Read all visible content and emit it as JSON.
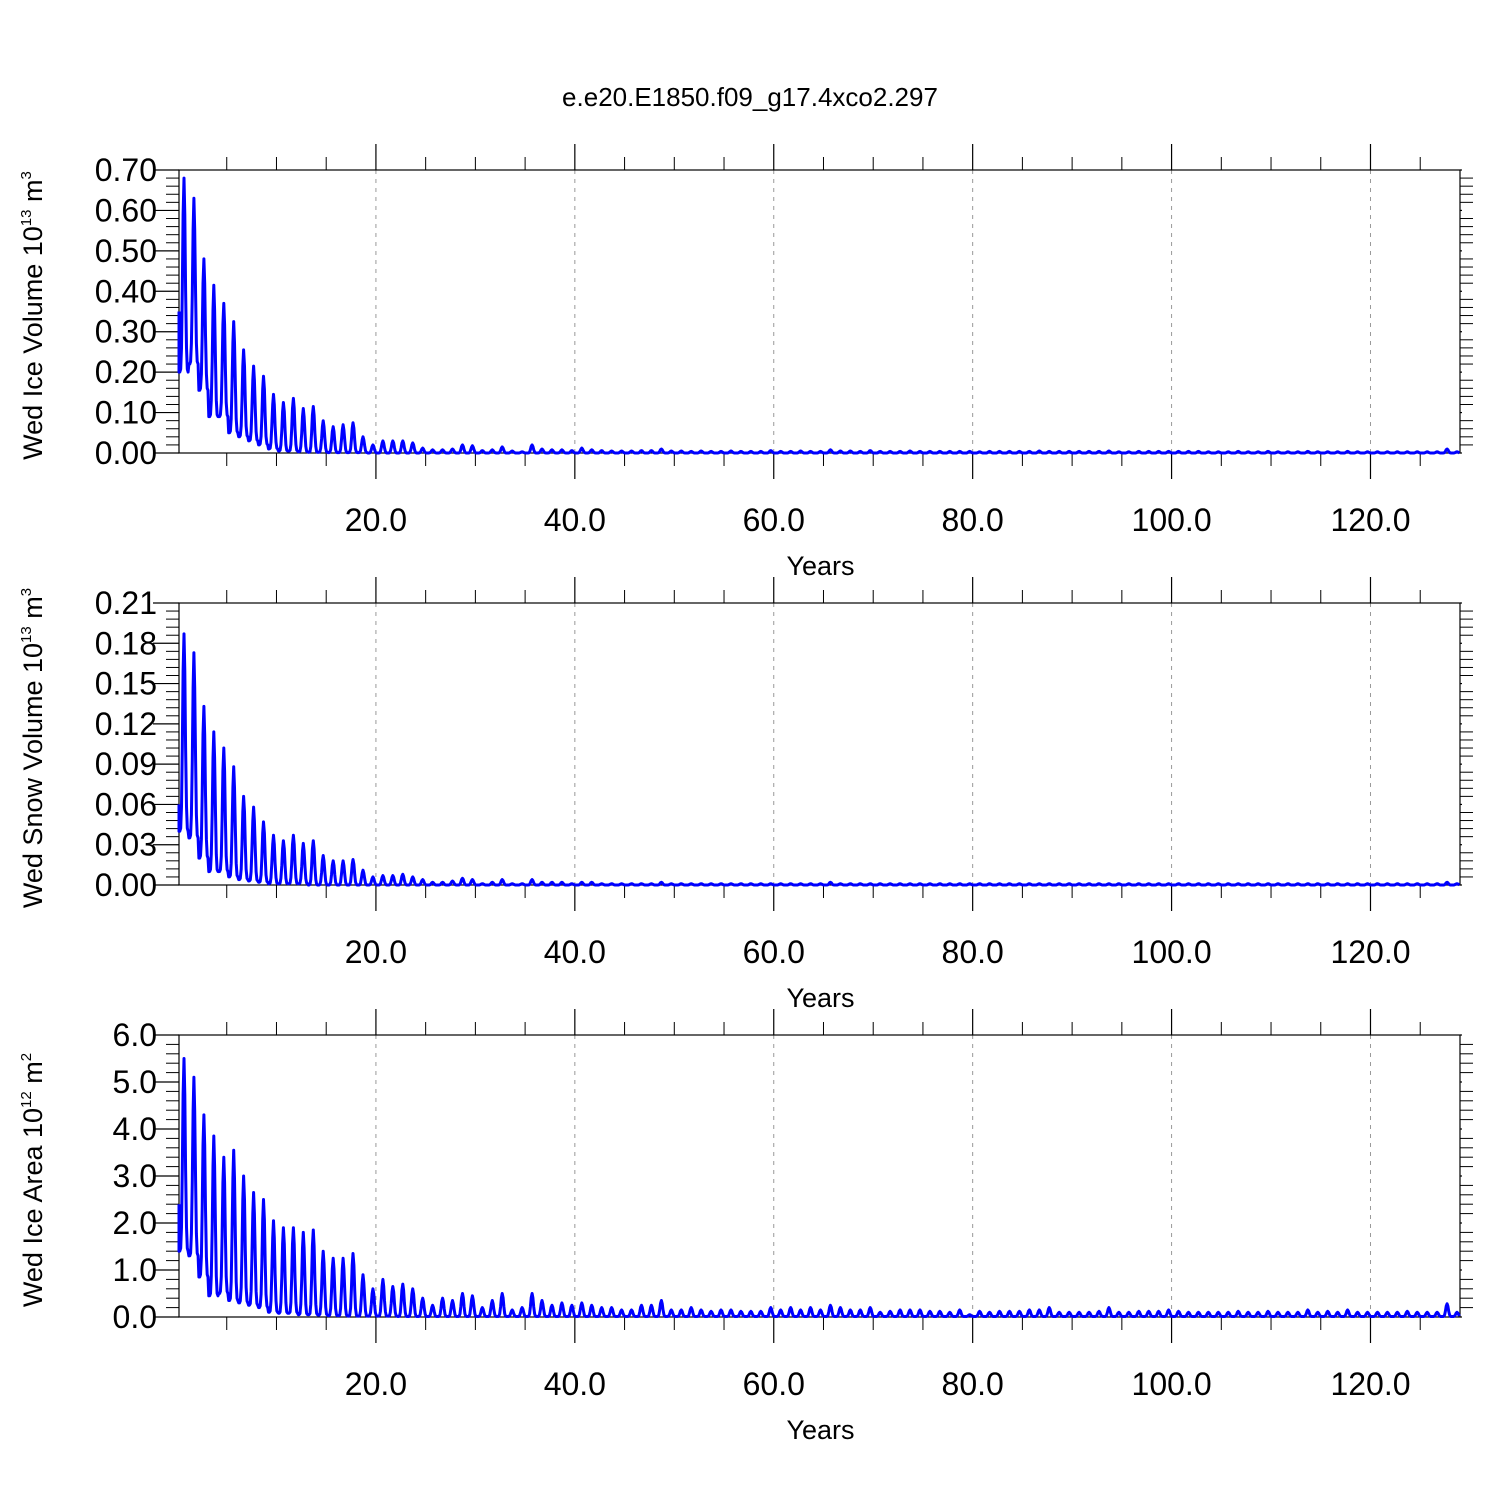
{
  "title": "e.e20.E1850.f09_g17.4xco2.297",
  "colors": {
    "series": "#0000ff",
    "axis": "#000000",
    "grid": "#999999"
  },
  "chart_data": [
    {
      "type": "line",
      "ylabel": {
        "prefix": "Wed Ice Volume 10",
        "exp": "13",
        "suffix": " m",
        "unit_exp": "3"
      },
      "xlabel": "Years",
      "xlim": [
        0.2,
        129
      ],
      "ylim": [
        0,
        0.7
      ],
      "yticks": [
        0,
        0.1,
        0.2,
        0.3,
        0.4,
        0.5,
        0.6,
        0.7
      ],
      "ytick_labels": [
        "0.00",
        "0.10",
        "0.20",
        "0.30",
        "0.40",
        "0.50",
        "0.60",
        "0.70"
      ],
      "xticks": [
        20,
        40,
        60,
        80,
        100,
        120
      ],
      "xtick_labels": [
        "20.0",
        "40.0",
        "60.0",
        "80.0",
        "100.0",
        "120.0"
      ],
      "grid": "vertical dashed at major x ticks",
      "series": [
        {
          "start": 0.35,
          "annual_max": [
            0.68,
            0.63,
            0.48,
            0.415,
            0.37,
            0.325,
            0.255,
            0.215,
            0.19,
            0.145,
            0.125,
            0.135,
            0.11,
            0.115,
            0.08,
            0.065,
            0.07,
            0.075,
            0.04,
            0.02,
            0.03,
            0.03,
            0.03,
            0.025,
            0.012,
            0.008,
            0.008,
            0.01,
            0.02,
            0.018,
            0.006,
            0.008,
            0.015,
            0.005,
            0.003,
            0.02,
            0.01,
            0.008,
            0.008,
            0.006,
            0.012,
            0.008,
            0.006,
            0.005,
            0.005,
            0.005,
            0.006,
            0.006,
            0.01,
            0.005,
            0.005,
            0.004,
            0.005,
            0.004,
            0.004,
            0.005,
            0.004,
            0.004,
            0.004,
            0.006,
            0.004,
            0.004,
            0.005,
            0.004,
            0.004,
            0.008,
            0.005,
            0.005,
            0.004,
            0.006,
            0.004,
            0.004,
            0.004,
            0.005,
            0.004,
            0.004,
            0.004,
            0.004,
            0.004,
            0.004,
            0.003,
            0.004,
            0.004,
            0.004,
            0.004,
            0.004,
            0.005,
            0.004,
            0.004,
            0.004,
            0.004,
            0.004,
            0.004,
            0.005,
            0.003,
            0.003,
            0.004,
            0.004,
            0.004,
            0.004,
            0.004,
            0.004,
            0.004,
            0.003,
            0.003,
            0.003,
            0.004,
            0.003,
            0.003,
            0.004,
            0.003,
            0.003,
            0.003,
            0.004,
            0.003,
            0.003,
            0.003,
            0.004,
            0.003,
            0.003,
            0.003,
            0.003,
            0.003,
            0.003,
            0.003,
            0.003,
            0.003,
            0.01,
            0.003
          ],
          "annual_min": [
            0.2,
            0.22,
            0.155,
            0.09,
            0.09,
            0.05,
            0.04,
            0.03,
            0.02,
            0.01,
            0.005,
            0.005,
            0.003,
            0.002,
            0.002,
            0.001,
            0.001,
            0.001,
            0.001,
            0,
            0,
            0,
            0,
            0,
            0,
            0,
            0,
            0,
            0,
            0,
            0,
            0,
            0,
            0,
            0,
            0,
            0,
            0,
            0,
            0,
            0,
            0,
            0,
            0,
            0,
            0,
            0,
            0,
            0,
            0,
            0,
            0,
            0,
            0,
            0,
            0,
            0,
            0,
            0,
            0,
            0,
            0,
            0,
            0,
            0,
            0,
            0,
            0,
            0,
            0,
            0,
            0,
            0,
            0,
            0,
            0,
            0,
            0,
            0,
            0,
            0,
            0,
            0,
            0,
            0,
            0,
            0,
            0,
            0,
            0,
            0,
            0,
            0,
            0,
            0,
            0,
            0,
            0,
            0,
            0,
            0,
            0,
            0,
            0,
            0,
            0,
            0,
            0,
            0,
            0,
            0,
            0,
            0,
            0,
            0,
            0,
            0,
            0,
            0,
            0,
            0,
            0,
            0,
            0,
            0,
            0,
            0,
            0,
            0
          ]
        }
      ]
    },
    {
      "type": "line",
      "ylabel": {
        "prefix": "Wed Snow Volume 10",
        "exp": "13",
        "suffix": " m",
        "unit_exp": "3"
      },
      "xlabel": "Years",
      "xlim": [
        0.2,
        129
      ],
      "ylim": [
        0,
        0.21
      ],
      "yticks": [
        0,
        0.03,
        0.06,
        0.09,
        0.12,
        0.15,
        0.18,
        0.21
      ],
      "ytick_labels": [
        "0.00",
        "0.03",
        "0.06",
        "0.09",
        "0.12",
        "0.15",
        "0.18",
        "0.21"
      ],
      "xticks": [
        20,
        40,
        60,
        80,
        100,
        120
      ],
      "xtick_labels": [
        "20.0",
        "40.0",
        "60.0",
        "80.0",
        "100.0",
        "120.0"
      ],
      "grid": "vertical dashed at major x ticks",
      "series": [
        {
          "start": 0.06,
          "annual_max": [
            0.187,
            0.173,
            0.133,
            0.114,
            0.102,
            0.088,
            0.066,
            0.058,
            0.047,
            0.037,
            0.033,
            0.037,
            0.031,
            0.033,
            0.022,
            0.018,
            0.018,
            0.019,
            0.011,
            0.006,
            0.007,
            0.007,
            0.008,
            0.006,
            0.004,
            0.002,
            0.002,
            0.003,
            0.005,
            0.004,
            0.001,
            0.002,
            0.004,
            0.001,
            0.001,
            0.004,
            0.002,
            0.002,
            0.002,
            0.001,
            0.002,
            0.002,
            0.001,
            0.001,
            0.001,
            0.001,
            0.001,
            0.001,
            0.002,
            0.001,
            0.001,
            0.001,
            0.001,
            0.001,
            0.001,
            0.001,
            0.001,
            0.001,
            0.001,
            0.001,
            0.001,
            0.001,
            0.001,
            0.001,
            0.001,
            0.002,
            0.001,
            0.001,
            0.001,
            0.001,
            0.001,
            0.001,
            0.001,
            0.001,
            0.001,
            0.001,
            0.001,
            0.001,
            0.001,
            0.001,
            0.001,
            0.001,
            0.001,
            0.001,
            0.001,
            0.001,
            0.001,
            0.001,
            0.001,
            0.001,
            0.001,
            0.001,
            0.001,
            0.001,
            0.001,
            0.001,
            0.001,
            0.001,
            0.001,
            0.001,
            0.001,
            0.001,
            0.001,
            0.001,
            0.001,
            0.001,
            0.001,
            0.001,
            0.001,
            0.001,
            0.001,
            0.001,
            0.001,
            0.001,
            0.001,
            0.001,
            0.001,
            0.001,
            0.001,
            0.001,
            0.001,
            0.001,
            0.001,
            0.001,
            0.001,
            0.001,
            0.001,
            0.002,
            0.001
          ],
          "annual_min": [
            0.04,
            0.035,
            0.02,
            0.01,
            0.01,
            0.006,
            0.004,
            0.003,
            0.002,
            0.001,
            0.001,
            0.001,
            0.001,
            0,
            0,
            0,
            0,
            0,
            0,
            0,
            0,
            0,
            0,
            0,
            0,
            0,
            0,
            0,
            0,
            0,
            0,
            0,
            0,
            0,
            0,
            0,
            0,
            0,
            0,
            0,
            0,
            0,
            0,
            0,
            0,
            0,
            0,
            0,
            0,
            0,
            0,
            0,
            0,
            0,
            0,
            0,
            0,
            0,
            0,
            0,
            0,
            0,
            0,
            0,
            0,
            0,
            0,
            0,
            0,
            0,
            0,
            0,
            0,
            0,
            0,
            0,
            0,
            0,
            0,
            0,
            0,
            0,
            0,
            0,
            0,
            0,
            0,
            0,
            0,
            0,
            0,
            0,
            0,
            0,
            0,
            0,
            0,
            0,
            0,
            0,
            0,
            0,
            0,
            0,
            0,
            0,
            0,
            0,
            0,
            0,
            0,
            0,
            0,
            0,
            0,
            0,
            0,
            0,
            0,
            0,
            0,
            0,
            0,
            0,
            0,
            0,
            0,
            0,
            0
          ]
        }
      ]
    },
    {
      "type": "line",
      "ylabel": {
        "prefix": "Wed Ice Area 10",
        "exp": "12",
        "suffix": " m",
        "unit_exp": "2"
      },
      "xlabel": "Years",
      "xlim": [
        0.2,
        129
      ],
      "ylim": [
        0,
        6.0
      ],
      "yticks": [
        0,
        1.0,
        2.0,
        3.0,
        4.0,
        5.0,
        6.0
      ],
      "ytick_labels": [
        "0.0",
        "1.0",
        "2.0",
        "3.0",
        "4.0",
        "5.0",
        "6.0"
      ],
      "xticks": [
        20,
        40,
        60,
        80,
        100,
        120
      ],
      "xtick_labels": [
        "20.0",
        "40.0",
        "60.0",
        "80.0",
        "100.0",
        "120.0"
      ],
      "grid": "vertical dashed at major x ticks",
      "series": [
        {
          "start": 2.4,
          "annual_max": [
            5.5,
            5.1,
            4.3,
            3.85,
            3.4,
            3.55,
            3.0,
            2.65,
            2.5,
            2.05,
            1.9,
            1.9,
            1.8,
            1.85,
            1.4,
            1.25,
            1.25,
            1.35,
            0.9,
            0.6,
            0.8,
            0.65,
            0.7,
            0.6,
            0.4,
            0.25,
            0.4,
            0.35,
            0.5,
            0.45,
            0.2,
            0.35,
            0.5,
            0.15,
            0.2,
            0.5,
            0.35,
            0.25,
            0.3,
            0.25,
            0.3,
            0.25,
            0.2,
            0.2,
            0.15,
            0.15,
            0.25,
            0.25,
            0.35,
            0.15,
            0.15,
            0.2,
            0.15,
            0.12,
            0.15,
            0.15,
            0.12,
            0.12,
            0.12,
            0.2,
            0.15,
            0.2,
            0.15,
            0.2,
            0.15,
            0.25,
            0.2,
            0.15,
            0.15,
            0.2,
            0.1,
            0.12,
            0.15,
            0.15,
            0.15,
            0.12,
            0.12,
            0.1,
            0.15,
            0.05,
            0.12,
            0.1,
            0.12,
            0.12,
            0.12,
            0.15,
            0.15,
            0.2,
            0.1,
            0.1,
            0.1,
            0.1,
            0.12,
            0.2,
            0.1,
            0.1,
            0.12,
            0.12,
            0.12,
            0.15,
            0.12,
            0.1,
            0.1,
            0.1,
            0.1,
            0.1,
            0.12,
            0.1,
            0.1,
            0.12,
            0.1,
            0.1,
            0.1,
            0.15,
            0.1,
            0.12,
            0.1,
            0.15,
            0.1,
            0.1,
            0.1,
            0.1,
            0.1,
            0.12,
            0.1,
            0.1,
            0.1,
            0.28,
            0.1
          ],
          "annual_min": [
            1.4,
            1.3,
            0.85,
            0.45,
            0.5,
            0.35,
            0.3,
            0.25,
            0.2,
            0.1,
            0.08,
            0.08,
            0.05,
            0.05,
            0.04,
            0.03,
            0.03,
            0.02,
            0.02,
            0.02,
            0.02,
            0.02,
            0.01,
            0.01,
            0.01,
            0.01,
            0.01,
            0.01,
            0.01,
            0.01,
            0.01,
            0.01,
            0.01,
            0.01,
            0.01,
            0.01,
            0.01,
            0.01,
            0.01,
            0.01,
            0.01,
            0.01,
            0.01,
            0.01,
            0.01,
            0.01,
            0.01,
            0.01,
            0.01,
            0.01,
            0.01,
            0.01,
            0.01,
            0.01,
            0.01,
            0.01,
            0.01,
            0.01,
            0.01,
            0.01,
            0.01,
            0.01,
            0.01,
            0.01,
            0.01,
            0.01,
            0.01,
            0.01,
            0.01,
            0.01,
            0.01,
            0.01,
            0.01,
            0.01,
            0.01,
            0.01,
            0.01,
            0.01,
            0.01,
            0.01,
            0.01,
            0.01,
            0.01,
            0.01,
            0.01,
            0.01,
            0.01,
            0.01,
            0.01,
            0.01,
            0.01,
            0.01,
            0.01,
            0.01,
            0.01,
            0.01,
            0.01,
            0.01,
            0.01,
            0.01,
            0.01,
            0.01,
            0.01,
            0.01,
            0.01,
            0.01,
            0.01,
            0.01,
            0.01,
            0.01,
            0.01,
            0.01,
            0.01,
            0.01,
            0.01,
            0.01,
            0.01,
            0.01,
            0.01,
            0.01,
            0.01,
            0.01,
            0.01,
            0.01,
            0.01,
            0.01,
            0.01,
            0.01,
            0.01
          ]
        }
      ]
    }
  ]
}
